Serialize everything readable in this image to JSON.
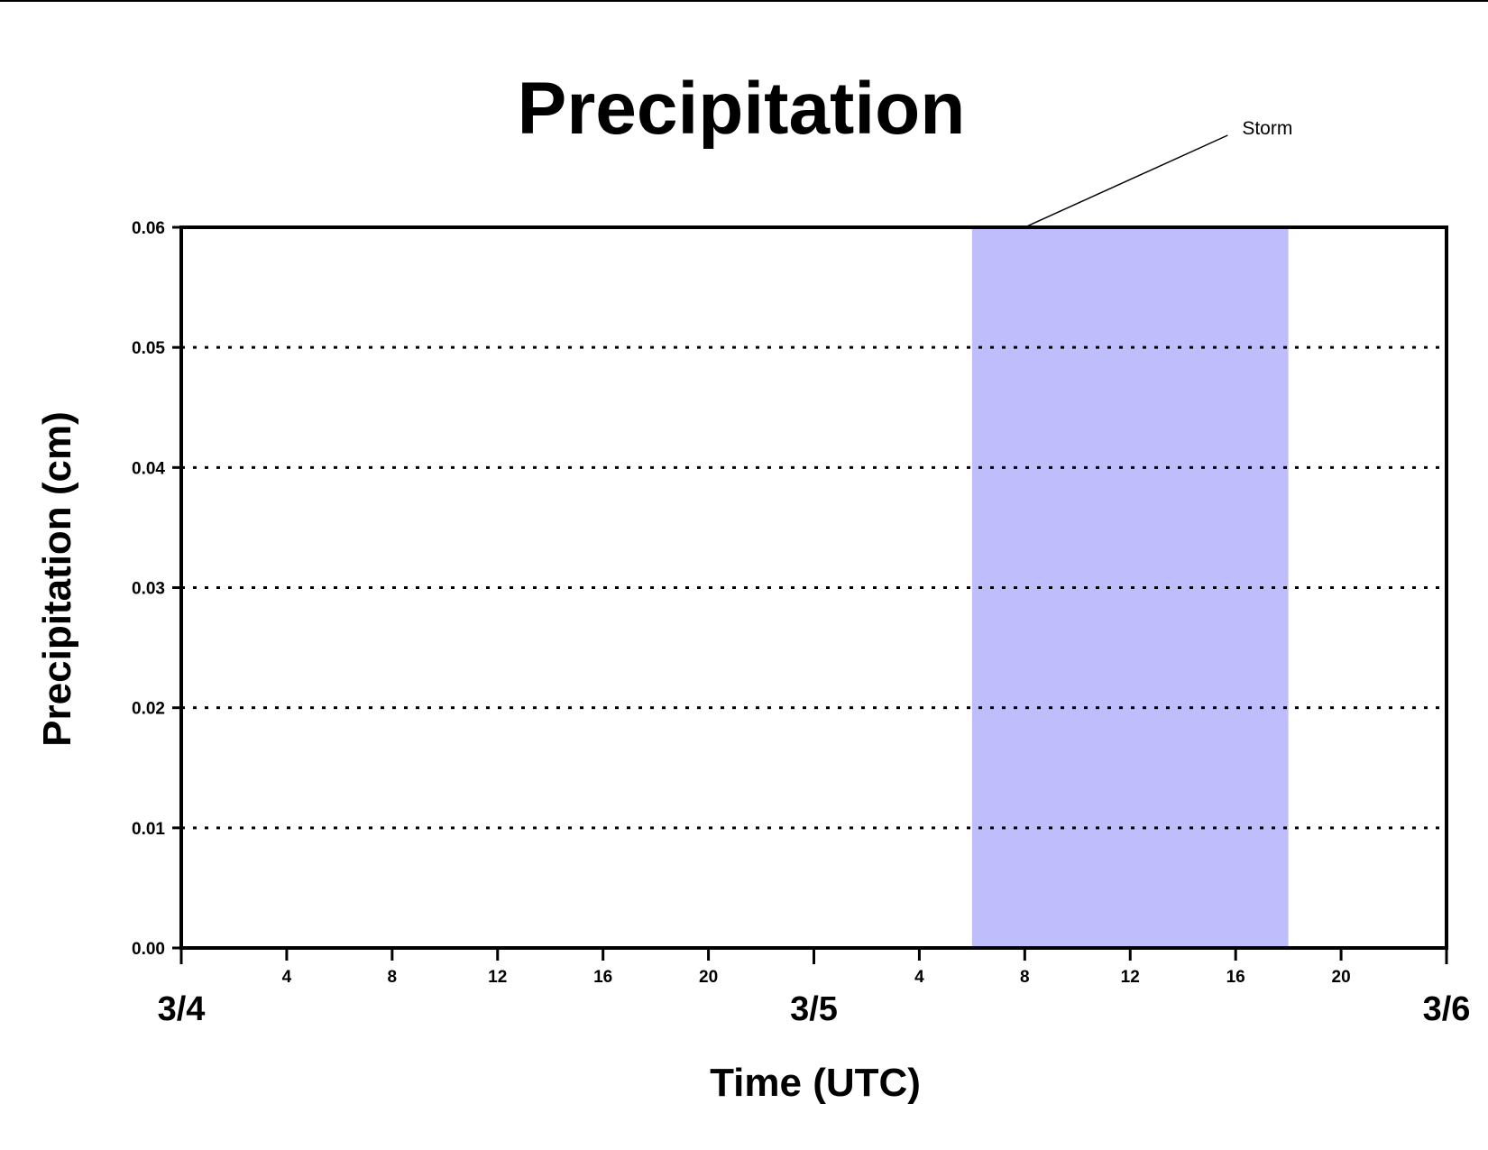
{
  "chart_data": {
    "type": "line",
    "title": "Precipitation",
    "xlabel": "Time (UTC)",
    "ylabel": "Precipitation (cm)",
    "x_unit": "hours",
    "xlim": [
      0,
      48
    ],
    "ylim": [
      0,
      0.06
    ],
    "y_ticks": [
      {
        "value": 0.0,
        "label": "0.00"
      },
      {
        "value": 0.01,
        "label": "0.01"
      },
      {
        "value": 0.02,
        "label": "0.02"
      },
      {
        "value": 0.03,
        "label": "0.03"
      },
      {
        "value": 0.04,
        "label": "0.04"
      },
      {
        "value": 0.05,
        "label": "0.05"
      },
      {
        "value": 0.06,
        "label": "0.06"
      }
    ],
    "x_minor_ticks": [
      {
        "value": 4,
        "label": "4"
      },
      {
        "value": 8,
        "label": "8"
      },
      {
        "value": 12,
        "label": "12"
      },
      {
        "value": 16,
        "label": "16"
      },
      {
        "value": 20,
        "label": "20"
      },
      {
        "value": 28,
        "label": "4"
      },
      {
        "value": 32,
        "label": "8"
      },
      {
        "value": 36,
        "label": "12"
      },
      {
        "value": 40,
        "label": "16"
      },
      {
        "value": 44,
        "label": "20"
      }
    ],
    "x_major_ticks": [
      {
        "value": 0,
        "label": "3/4"
      },
      {
        "value": 24,
        "label": "3/5"
      },
      {
        "value": 48,
        "label": "3/6"
      }
    ],
    "grid": {
      "y": true,
      "x": false,
      "style": "dotted"
    },
    "series": [
      {
        "color": "#8b1a1a",
        "x": [
          0,
          48
        ],
        "y": [
          0.0,
          0.0
        ]
      }
    ],
    "shaded_regions": [
      {
        "x_start": 30,
        "x_end": 42,
        "color": "#bfbdfb"
      }
    ],
    "annotations": [
      {
        "text": "Storm",
        "points_to_x": 32,
        "points_to_y": 0.06
      }
    ]
  }
}
